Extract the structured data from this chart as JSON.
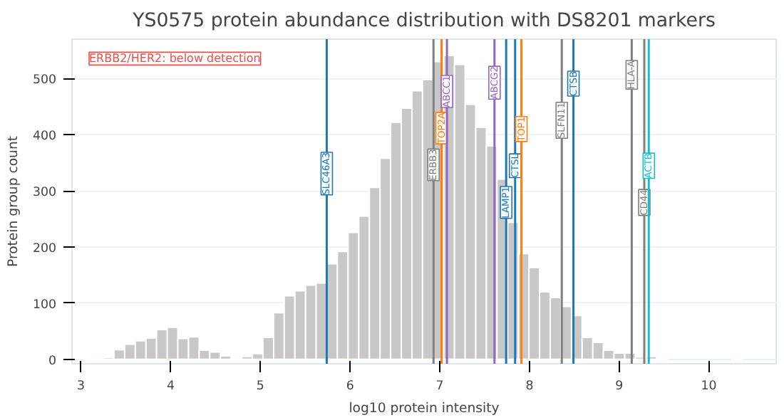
{
  "chart_data": {
    "type": "histogram",
    "title": "YS0575 protein abundance distribution with DS8201 markers",
    "xlabel": "log10 protein intensity",
    "ylabel": "Protein group count",
    "bins": [
      3.013,
      3.132,
      3.25,
      3.369,
      3.487,
      3.606,
      3.725,
      3.843,
      3.962,
      4.08,
      4.199,
      4.318,
      4.436,
      4.555,
      4.673,
      4.792,
      4.911,
      5.029,
      5.148,
      5.266,
      5.385,
      5.504,
      5.622,
      5.741,
      5.859,
      5.978,
      6.097,
      6.215,
      6.334,
      6.452,
      6.571,
      6.69,
      6.808,
      6.927,
      7.045,
      7.164,
      7.283,
      7.401,
      7.52,
      7.638,
      7.757,
      7.876,
      7.994,
      8.113,
      8.231,
      8.35,
      8.469,
      8.587,
      8.706,
      8.824,
      8.943,
      9.062,
      9.18,
      9.299,
      9.417,
      9.536,
      9.655,
      9.773,
      9.892,
      10.01,
      10.129,
      10.248,
      10.366
    ],
    "values": [
      1,
      1,
      3,
      17,
      27,
      33,
      38,
      53,
      57,
      37,
      40,
      16,
      13,
      6,
      2,
      5,
      10,
      39,
      83,
      113,
      122,
      132,
      136,
      170,
      192,
      226,
      255,
      306,
      358,
      422,
      447,
      478,
      498,
      530,
      541,
      525,
      454,
      413,
      380,
      321,
      244,
      188,
      163,
      120,
      110,
      94,
      78,
      39,
      30,
      16,
      11,
      11,
      4,
      5,
      1,
      0,
      0,
      0,
      0,
      0,
      0,
      1
    ],
    "color": "#c8c8c8",
    "xlim": [
      2.9,
      10.75
    ],
    "ylim": [
      -8,
      570
    ],
    "xticks": [
      3,
      4,
      5,
      6,
      7,
      8,
      9,
      10
    ],
    "yticks": [
      0,
      100,
      200,
      300,
      400,
      500
    ],
    "grid": "y",
    "ref_lines": [
      {
        "axis": "x",
        "value": 5.74,
        "label": "SLC46A3",
        "color": "#1f77b4"
      },
      {
        "axis": "x",
        "value": 6.93,
        "label": "ERBB3",
        "color": "#7f7f7f"
      },
      {
        "axis": "x",
        "value": 7.02,
        "label": "TOP2A",
        "color": "#ff7f0e"
      },
      {
        "axis": "x",
        "value": 7.08,
        "label": "ABCC1",
        "color": "#9467bd"
      },
      {
        "axis": "x",
        "value": 7.61,
        "label": "ABCG2",
        "color": "#9467bd"
      },
      {
        "axis": "x",
        "value": 7.74,
        "label": "LAMP1",
        "color": "#1f77b4"
      },
      {
        "axis": "x",
        "value": 7.84,
        "label": "CTSL",
        "color": "#1f77b4"
      },
      {
        "axis": "x",
        "value": 7.91,
        "label": "TOP1",
        "color": "#ff7f0e"
      },
      {
        "axis": "x",
        "value": 8.36,
        "label": "SLFN11",
        "color": "#7f7f7f"
      },
      {
        "axis": "x",
        "value": 8.49,
        "label": "CTSB",
        "color": "#1f77b4"
      },
      {
        "axis": "x",
        "value": 9.14,
        "label": "HLA-A",
        "color": "#7f7f7f"
      },
      {
        "axis": "x",
        "value": 9.28,
        "label": "CD44",
        "color": "#7f7f7f"
      },
      {
        "axis": "x",
        "value": 9.33,
        "label": "ACTB",
        "color": "#17becf"
      }
    ],
    "annotations": [
      "ERBB2/HER2: below detection"
    ]
  }
}
